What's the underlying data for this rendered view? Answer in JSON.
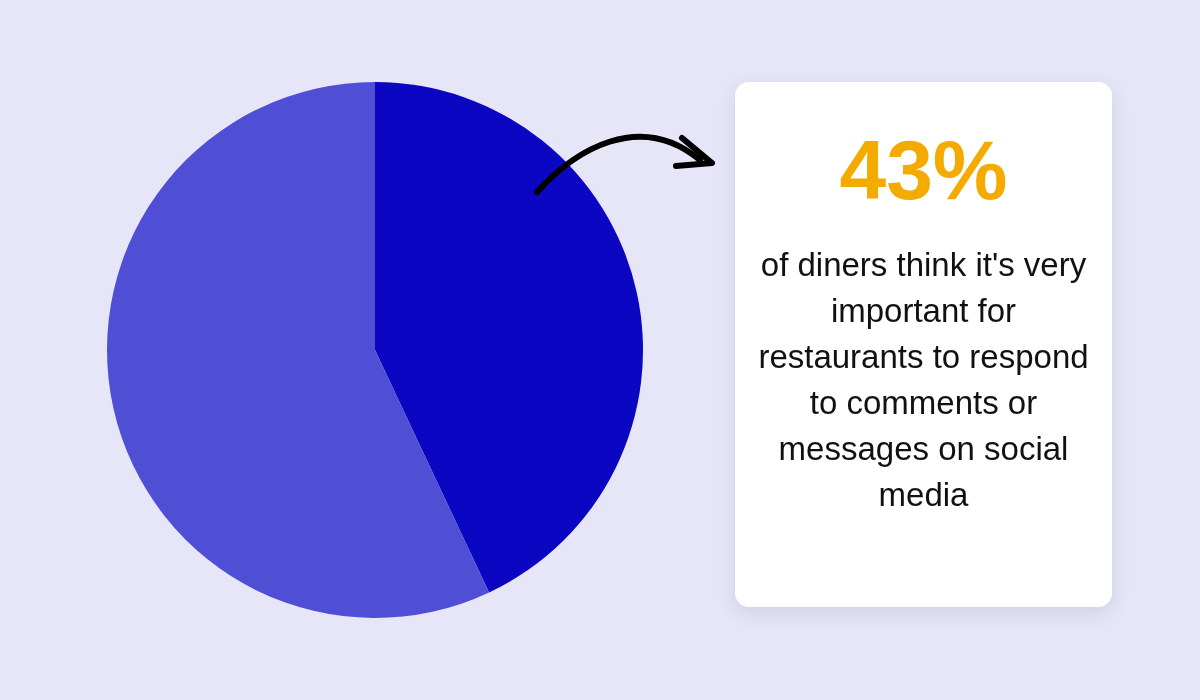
{
  "chart_data": {
    "type": "pie",
    "categories": [
      null,
      null
    ],
    "values": [
      43,
      57
    ],
    "colors": [
      "#0a06c2",
      "#4f4fd6"
    ],
    "annotations": [
      "43%",
      "of diners think it's very important for restaurants to respond to comments or messages on social media"
    ]
  }
}
